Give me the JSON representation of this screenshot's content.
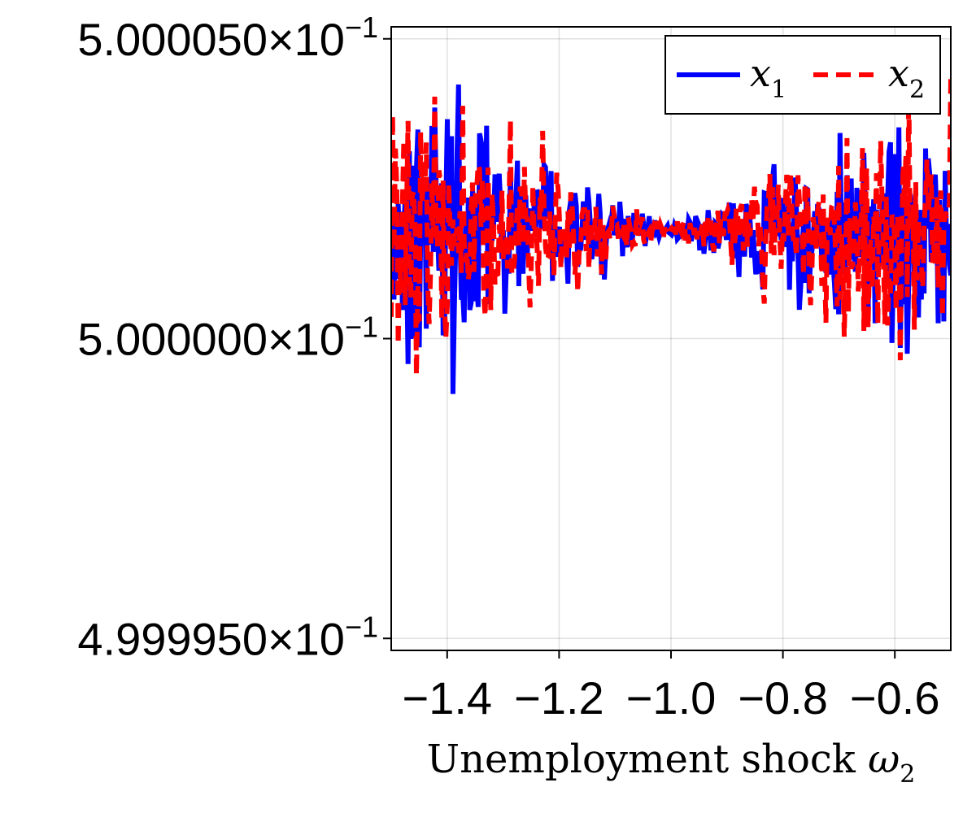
{
  "chart_data": {
    "type": "line",
    "title": "",
    "xlabel": "Unemployment shock ",
    "xlabel_symbol": "ω",
    "xlabel_subscript": "2",
    "ylabel": "",
    "xlim": [
      -1.5,
      -0.5
    ],
    "ylim": [
      0.4999948,
      0.5000052
    ],
    "xticks": [
      -1.4,
      -1.2,
      -1.0,
      -0.8,
      -0.6
    ],
    "xtick_labels": [
      "−1.4",
      "−1.2",
      "−1.0",
      "−0.8",
      "−0.6"
    ],
    "yticks": [
      0.499995,
      0.5,
      0.500005
    ],
    "ytick_labels": [
      "4.999950×10",
      "5.000000×10",
      "5.000050×10"
    ],
    "ytick_exponent": "−1",
    "grid": true,
    "legend_position": "top-right",
    "center_value": 0.5000018,
    "amplitude_at_edge": 3.8e-06,
    "amplitude_at_center": 1e-07,
    "noise_center_x": -1.0,
    "num_points": 400,
    "series": [
      {
        "name": "x",
        "subscript": "1",
        "color": "#0000ff",
        "style": "solid",
        "seed": 17
      },
      {
        "name": "x",
        "subscript": "2",
        "color": "#ff0000",
        "style": "dashed",
        "seed": 91
      }
    ]
  }
}
